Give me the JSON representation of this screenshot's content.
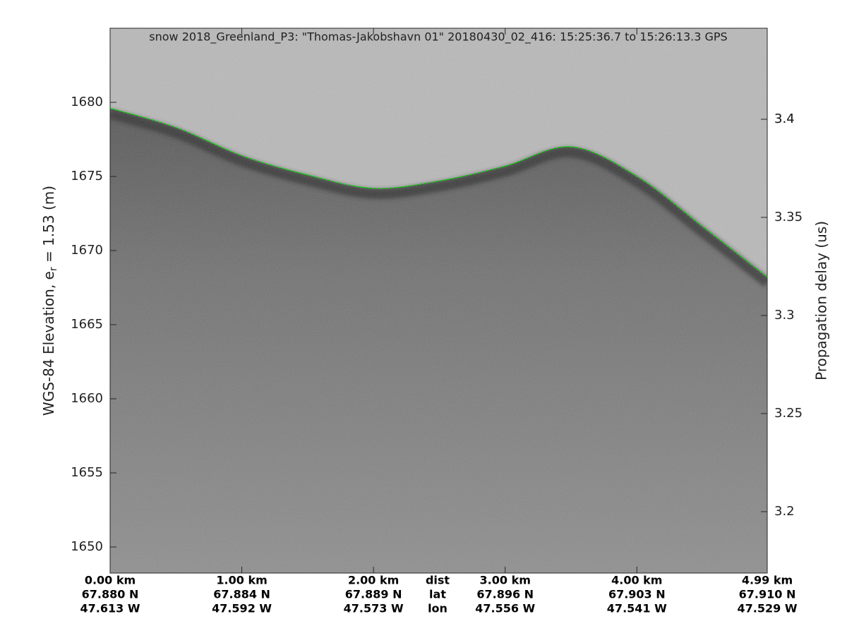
{
  "chart_data": {
    "type": "echogram",
    "title": "snow 2018_Greenland_P3: \"Thomas-Jakobshavn 01\"  20180430_02_416: 15:25:36.7 to 15:26:13.3 GPS",
    "ylabel": [
      "WGS-84 Elevation, e",
      "r",
      " = 1.53 (m)"
    ],
    "y2label": "Propagation delay (us)",
    "xlim": [
      0,
      4.99
    ],
    "ylim": [
      1648.24,
      1685
    ],
    "y2lim": [
      3.1687,
      3.4464
    ],
    "xticks": [
      {
        "value": 0,
        "label": "0.00 km"
      },
      {
        "value": 1,
        "label": "1.00 km"
      },
      {
        "value": 2,
        "label": "2.00 km"
      },
      {
        "value": 3,
        "label": "3.00 km"
      },
      {
        "value": 4,
        "label": "4.00 km"
      },
      {
        "value": 4.99,
        "label": "4.99 km"
      }
    ],
    "lat_labels": [
      "67.880 N",
      "67.884 N",
      "67.889 N",
      "67.896 N",
      "67.903 N",
      "67.910 N"
    ],
    "lon_labels": [
      "47.613 W",
      "47.592 W",
      "47.573 W",
      "47.556 W",
      "47.541 W",
      "47.529 W"
    ],
    "row_labels": [
      "dist",
      "lat",
      "lon"
    ],
    "yticks": [
      1650,
      1655,
      1660,
      1665,
      1670,
      1675,
      1680
    ],
    "y2ticks": [
      3.25,
      3.3,
      3.35,
      3.4,
      {
        "value": 3.2,
        "label": "3.2"
      },
      {
        "value": 3.4,
        "label": "3.4"
      }
    ],
    "surface": {
      "color": "#00dd00",
      "x": [
        0,
        0.5,
        1.0,
        1.5,
        2.0,
        2.5,
        3.0,
        3.5,
        4.0,
        4.5,
        4.99
      ],
      "y": [
        1679.6,
        1678.3,
        1676.4,
        1675.1,
        1674.2,
        1674.7,
        1675.7,
        1677.0,
        1675.0,
        1671.6,
        1668.2
      ]
    }
  }
}
